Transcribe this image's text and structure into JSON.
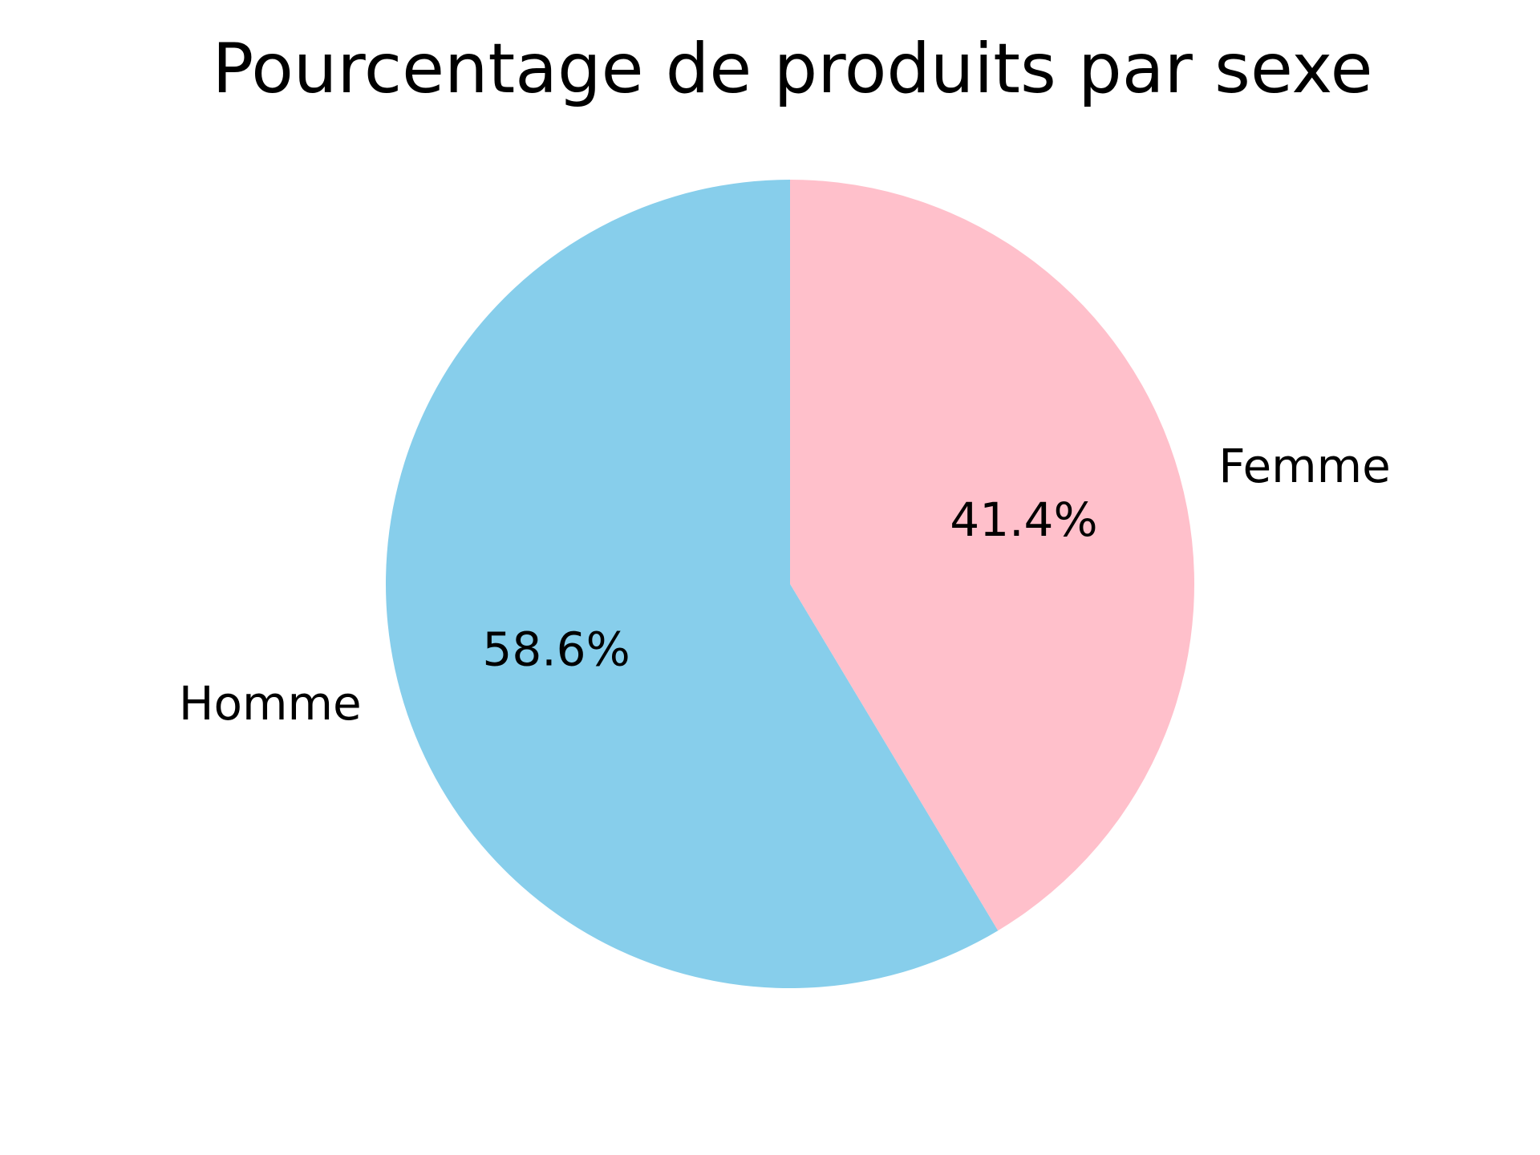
{
  "chart_data": {
    "type": "pie",
    "title": "Pourcentage de produits par sexe",
    "slices": [
      {
        "label": "Homme",
        "value": 58.6,
        "pct_label": "58.6%",
        "color": "#87CEEB"
      },
      {
        "label": "Femme",
        "value": 41.4,
        "pct_label": "41.4%",
        "color": "#FFC0CB"
      }
    ],
    "start_angle_deg": 90,
    "direction": "counterclockwise",
    "legend": "none"
  }
}
